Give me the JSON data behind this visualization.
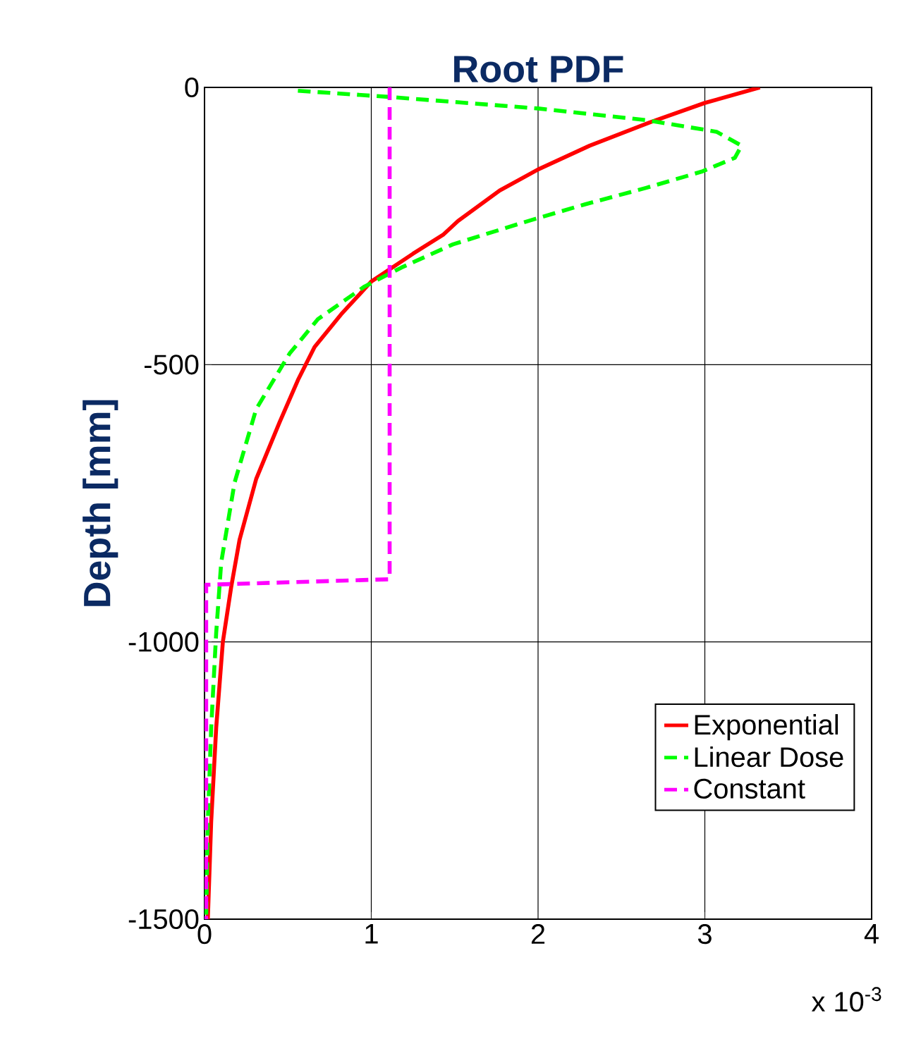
{
  "chart_data": {
    "type": "line",
    "title": "Root PDF",
    "ylabel": "Depth [mm]",
    "annotations": [
      "x 10$^{-3}$"
    ],
    "xlim": [
      0,
      4
    ],
    "xticks": [
      0,
      1,
      2,
      3,
      4
    ],
    "ylim": [
      -1500,
      0
    ],
    "yticks": [
      -1500,
      -1000,
      -500,
      0
    ],
    "grid": true,
    "legend": "bottom right",
    "marker": "none",
    "series": [
      {
        "name": "Exponential",
        "color": "#ff0000",
        "line_style": "solid",
        "x": [
          3.33,
          3.0,
          2.67,
          2.31,
          2.0,
          1.77,
          1.52,
          1.43,
          1.25,
          1.0,
          0.82,
          0.66,
          0.56,
          0.45,
          0.31,
          0.21,
          0.16,
          0.11,
          0.07,
          0.04,
          0.02
        ],
        "values": [
          0,
          -28,
          -63,
          -105,
          -148,
          -186,
          -241,
          -266,
          -300,
          -350,
          -409,
          -468,
          -528,
          -604,
          -706,
          -816,
          -901,
          -1000,
          -1155,
          -1324,
          -1500
        ]
      },
      {
        "name": "Linear Dose",
        "color": "#00ff00",
        "line_style": "dashed",
        "x": [
          0.56,
          1.1,
          2.0,
          2.65,
          3.07,
          3.22,
          3.18,
          2.98,
          2.65,
          2.28,
          1.94,
          1.49,
          1.18,
          0.96,
          0.68,
          0.51,
          0.31,
          0.18,
          0.1,
          0.07,
          0.04,
          0.02,
          0.01
        ],
        "values": [
          -6,
          -17,
          -38,
          -59,
          -80,
          -105,
          -127,
          -152,
          -181,
          -211,
          -241,
          -283,
          -325,
          -359,
          -418,
          -480,
          -580,
          -713,
          -857,
          -984,
          -1155,
          -1324,
          -1500
        ]
      },
      {
        "name": "Constant",
        "color": "#ff00ff",
        "line_style": "dashed",
        "x": [
          1.11,
          1.11,
          0.01,
          0.01
        ],
        "values": [
          0,
          -887,
          -897,
          -1500
        ]
      }
    ]
  }
}
